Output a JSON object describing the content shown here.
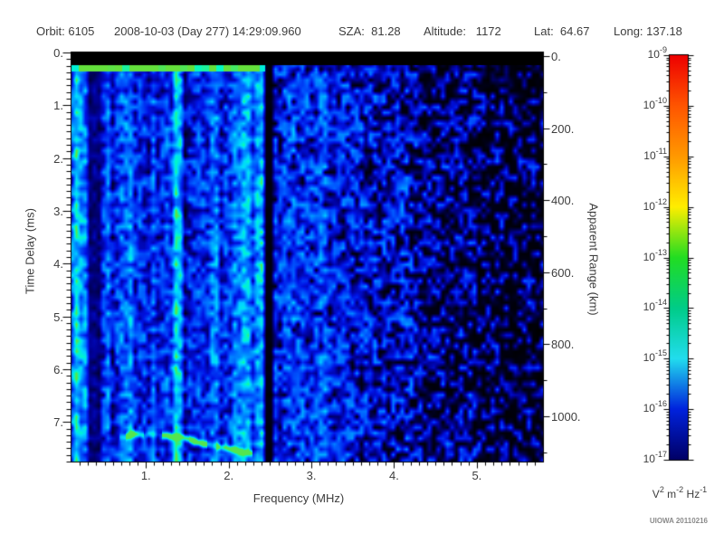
{
  "header": {
    "orbit": "Orbit: 6105",
    "datetime": "2008-10-03 (Day 277) 14:29:09.960",
    "sza": "SZA:  81.28",
    "altitude": "Altitude:   1172",
    "lat": "Lat:  64.67",
    "long": "Long: 137.18"
  },
  "chart_data": {
    "type": "heatmap",
    "description": "Radar sounder ionogram: echo spectral density vs frequency and time delay",
    "xlabel": "Frequency (MHz)",
    "ylabel_left": "Time Delay (ms)",
    "ylabel_right": "Apparent Range (km)",
    "xlim": [
      0.1,
      5.8
    ],
    "ylim_ms": [
      0,
      7.75
    ],
    "range_lim_km": [
      -10,
      1126
    ],
    "x_tick_values": [
      1,
      2,
      3,
      4,
      5
    ],
    "x_tick_labels": [
      "1.",
      "2.",
      "3.",
      "4.",
      "5."
    ],
    "x_minor_step": 0.1,
    "y_tick_values_ms": [
      0,
      1,
      2,
      3,
      4,
      5,
      6,
      7
    ],
    "y_tick_labels_ms": [
      "0.",
      "1.",
      "2.",
      "3.",
      "4.",
      "5.",
      "6.",
      "7."
    ],
    "y_minor_step_ms": 0.125,
    "range_tick_values_km": [
      0,
      200,
      400,
      600,
      800,
      1000
    ],
    "range_tick_labels": [
      "0.",
      "200.",
      "400.",
      "600.",
      "800.",
      "1000."
    ],
    "range_minor_step_km": 100,
    "grid": false,
    "legend_position": "right-colorbar",
    "colorbar": {
      "base": "10",
      "exponents": [
        "-9",
        "-10",
        "-11",
        "-12",
        "-13",
        "-14",
        "-15",
        "-16",
        "-17"
      ],
      "unit_parts": [
        {
          "base": "V",
          "exp": "2"
        },
        {
          "base": " m",
          "exp": "-2"
        },
        {
          "base": " Hz",
          "exp": "-1"
        }
      ],
      "gradient_top_to_bottom": [
        "#ee0000",
        "#ff5500",
        "#ff9900",
        "#ffee00",
        "#22dd22",
        "#00cc88",
        "#22ddee",
        "#0022dd",
        "#000066"
      ]
    },
    "colormap_stops": [
      [
        0.0,
        [
          0,
          0,
          0
        ]
      ],
      [
        0.1,
        [
          0,
          0,
          60
        ]
      ],
      [
        0.22,
        [
          0,
          0,
          150
        ]
      ],
      [
        0.35,
        [
          0,
          20,
          230
        ]
      ],
      [
        0.5,
        [
          0,
          90,
          255
        ]
      ],
      [
        0.62,
        [
          0,
          150,
          255
        ]
      ],
      [
        0.74,
        [
          0,
          215,
          255
        ]
      ],
      [
        0.84,
        [
          0,
          250,
          200
        ]
      ],
      [
        0.92,
        [
          60,
          235,
          110
        ]
      ],
      [
        1.0,
        [
          100,
          225,
          60
        ]
      ]
    ],
    "features": {
      "transmit_gap_black_bar_ms": [
        0,
        0.24
      ],
      "surface_return_row_ms": [
        0.24,
        0.36
      ],
      "surface_return_max_mhz": 2.44,
      "dark_interference_bands_mhz": [
        [
          0.28,
          0.47
        ],
        [
          2.44,
          2.53
        ]
      ],
      "bright_interference_lines_mhz": [
        [
          1.31,
          1.4,
          0.28
        ],
        [
          1.1,
          1.17,
          0.12
        ]
      ],
      "ionospheric_echo_trace_mhz_ms": [
        [
          0.7,
          7.28
        ],
        [
          0.85,
          7.22
        ],
        [
          1.0,
          7.24
        ],
        [
          1.15,
          7.22
        ],
        [
          1.3,
          7.26
        ],
        [
          1.45,
          7.28
        ],
        [
          1.55,
          7.34
        ],
        [
          1.7,
          7.41
        ],
        [
          1.85,
          7.46
        ],
        [
          2.0,
          7.5
        ],
        [
          2.1,
          7.53
        ],
        [
          2.25,
          7.58
        ]
      ],
      "noise_base_by_mhz": [
        [
          0.1,
          0.55
        ],
        [
          0.3,
          0.5
        ],
        [
          2.53,
          0.44
        ],
        [
          3.3,
          0.37
        ],
        [
          4.3,
          0.31
        ],
        [
          5.0,
          0.27
        ]
      ],
      "black_patch_onset_mhz": 3.2
    }
  },
  "footer": {
    "credit": "UIOWA 20110216"
  }
}
